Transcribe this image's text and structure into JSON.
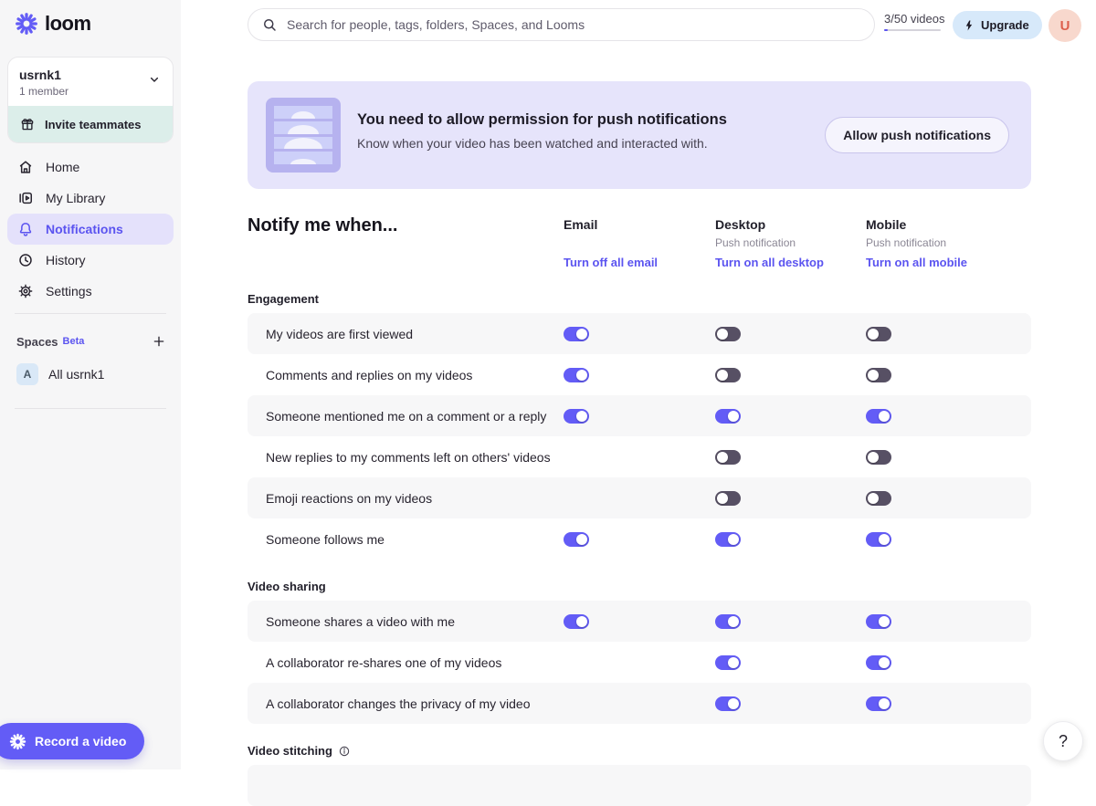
{
  "topbar": {
    "search_placeholder": "Search for people, tags, folders, Spaces, and Looms",
    "videos_count": "3/50 videos",
    "upgrade_label": "Upgrade",
    "avatar_initial": "U"
  },
  "sidebar": {
    "logo_text": "loom",
    "workspace": {
      "name": "usrnk1",
      "members": "1 member"
    },
    "invite_label": "Invite teammates",
    "nav": [
      {
        "label": "Home",
        "active": false
      },
      {
        "label": "My Library",
        "active": false
      },
      {
        "label": "Notifications",
        "active": true
      },
      {
        "label": "History",
        "active": false
      },
      {
        "label": "Settings",
        "active": false
      }
    ],
    "spaces": {
      "label": "Spaces",
      "badge": "Beta",
      "items": [
        {
          "initial": "A",
          "label": "All usrnk1"
        }
      ]
    },
    "record_button": "Record a video"
  },
  "banner": {
    "title": "You need to allow permission for push notifications",
    "subtitle": "Know when your video has been watched and interacted with.",
    "button": "Allow push notifications"
  },
  "notify": {
    "title": "Notify me when...",
    "columns": [
      {
        "label": "Email",
        "sub": "",
        "action": "Turn off all email"
      },
      {
        "label": "Desktop",
        "sub": "Push notification",
        "action": "Turn on all desktop"
      },
      {
        "label": "Mobile",
        "sub": "Push notification",
        "action": "Turn on all mobile"
      }
    ],
    "sections": [
      {
        "title": "Engagement",
        "rows": [
          {
            "label": "My videos are first viewed",
            "email": "on",
            "desktop": "off",
            "mobile": "off"
          },
          {
            "label": "Comments and replies on my videos",
            "email": "on",
            "desktop": "off",
            "mobile": "off"
          },
          {
            "label": "Someone mentioned me on a comment or a reply",
            "email": "on",
            "desktop": "on",
            "mobile": "on"
          },
          {
            "label": "New replies to my comments left on others' videos",
            "email": "none",
            "desktop": "off",
            "mobile": "off"
          },
          {
            "label": "Emoji reactions on my videos",
            "email": "none",
            "desktop": "off",
            "mobile": "off"
          },
          {
            "label": "Someone follows me",
            "email": "on",
            "desktop": "on",
            "mobile": "on"
          }
        ]
      },
      {
        "title": "Video sharing",
        "rows": [
          {
            "label": "Someone shares a video with me",
            "email": "on",
            "desktop": "on",
            "mobile": "on"
          },
          {
            "label": "A collaborator re-shares one of my videos",
            "email": "none",
            "desktop": "on",
            "mobile": "on"
          },
          {
            "label": "A collaborator changes the privacy of my video",
            "email": "none",
            "desktop": "on",
            "mobile": "on"
          }
        ]
      },
      {
        "title": "Video stitching",
        "info": true,
        "rows": [
          {
            "label": "",
            "email": "none",
            "desktop": "none",
            "mobile": "none"
          }
        ]
      }
    ]
  },
  "help_label": "?",
  "colors": {
    "accent": "#635cf6",
    "toggle_off": "#575064",
    "banner_bg": "#e6e4fb"
  }
}
